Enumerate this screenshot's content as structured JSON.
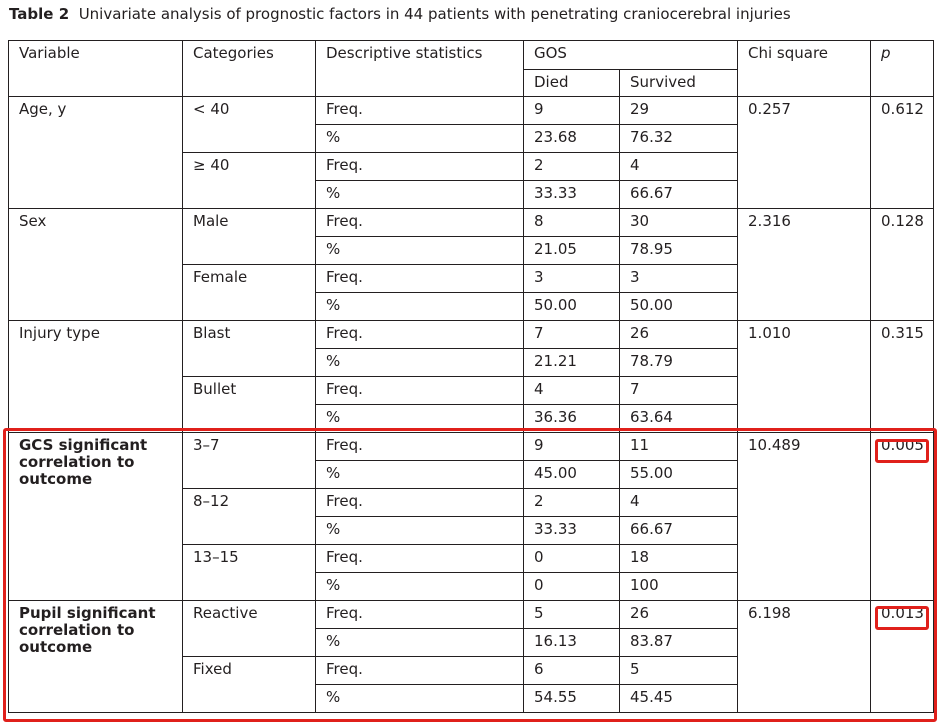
{
  "caption": {
    "label": "Table 2",
    "text": "Univariate analysis of prognostic factors in 44 patients with penetrating craniocerebral injuries"
  },
  "header": {
    "variable": "Variable",
    "categories": "Categories",
    "descriptive": "Descriptive statistics",
    "gos": "GOS",
    "died": "Died",
    "survived": "Survived",
    "chi": "Chi square",
    "p": "p"
  },
  "groups": [
    {
      "variable": "Age, y",
      "chi": "0.257",
      "p": "0.612",
      "cats": [
        {
          "name": "< 40",
          "freq": [
            "9",
            "29"
          ],
          "pct": [
            "23.68",
            "76.32"
          ]
        },
        {
          "name": "≥ 40",
          "freq": [
            "2",
            "4"
          ],
          "pct": [
            "33.33",
            "66.67"
          ]
        }
      ]
    },
    {
      "variable": "Sex",
      "chi": "2.316",
      "p": "0.128",
      "cats": [
        {
          "name": "Male",
          "freq": [
            "8",
            "30"
          ],
          "pct": [
            "21.05",
            "78.95"
          ]
        },
        {
          "name": "Female",
          "freq": [
            "3",
            "3"
          ],
          "pct": [
            "50.00",
            "50.00"
          ]
        }
      ]
    },
    {
      "variable": "Injury type",
      "chi": "1.010",
      "p": "0.315",
      "cats": [
        {
          "name": "Blast",
          "freq": [
            "7",
            "26"
          ],
          "pct": [
            "21.21",
            "78.79"
          ]
        },
        {
          "name": "Bullet",
          "freq": [
            "4",
            "7"
          ],
          "pct": [
            "36.36",
            "63.64"
          ]
        }
      ]
    },
    {
      "variable": "GCS significant correlation to outcome",
      "chi": "10.489",
      "p": "0.005",
      "cats": [
        {
          "name": "3–7",
          "freq": [
            "9",
            "11"
          ],
          "pct": [
            "45.00",
            "55.00"
          ]
        },
        {
          "name": "8–12",
          "freq": [
            "2",
            "4"
          ],
          "pct": [
            "33.33",
            "66.67"
          ]
        },
        {
          "name": "13–15",
          "freq": [
            "0",
            "18"
          ],
          "pct": [
            "0",
            "100"
          ]
        }
      ]
    },
    {
      "variable": "Pupil significant correlation to outcome",
      "chi": "6.198",
      "p": "0.013",
      "cats": [
        {
          "name": "Reactive",
          "freq": [
            "5",
            "26"
          ],
          "pct": [
            "16.13",
            "83.87"
          ]
        },
        {
          "name": "Fixed",
          "freq": [
            "6",
            "5"
          ],
          "pct": [
            "54.55",
            "45.45"
          ]
        }
      ]
    }
  ],
  "labels": {
    "freq": "Freq.",
    "pct": "%"
  },
  "colors": {
    "highlight": "#e0201b",
    "text": "#231f20"
  }
}
